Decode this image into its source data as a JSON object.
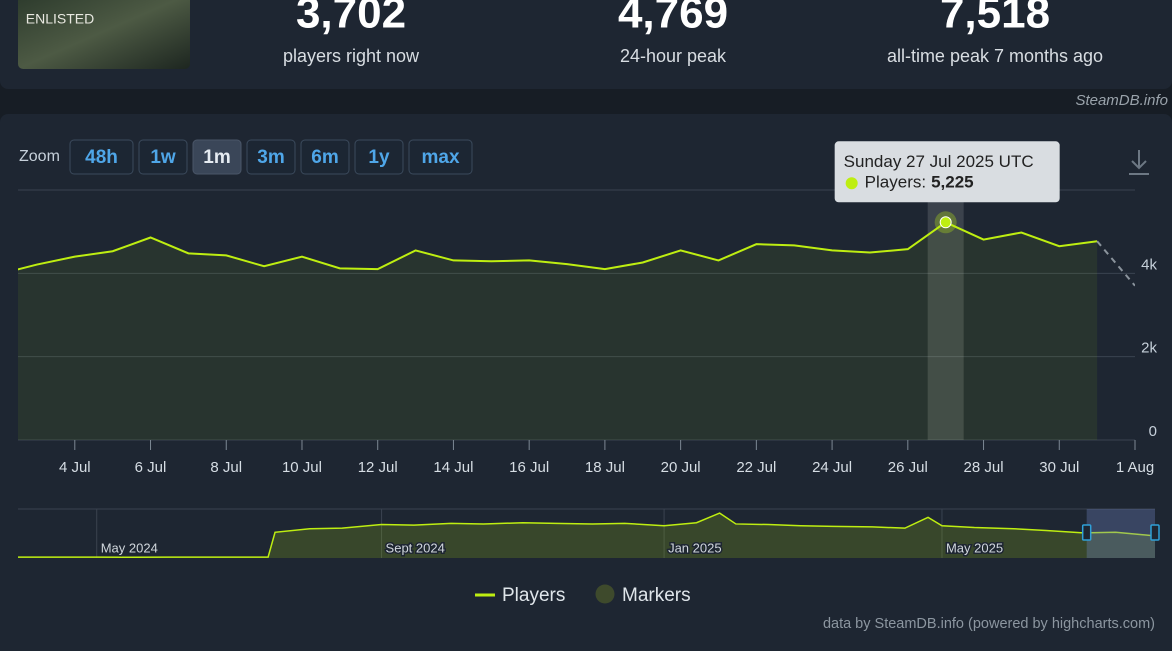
{
  "header": {
    "game_logo": "ENLISTED",
    "stats": [
      {
        "value": "3,702",
        "label": "players right now"
      },
      {
        "value": "4,769",
        "label": "24-hour peak"
      },
      {
        "value": "7,518",
        "label": "all-time peak 7 months ago"
      }
    ],
    "source": "SteamDB.info"
  },
  "zoom": {
    "label": "Zoom",
    "options": [
      "48h",
      "1w",
      "1m",
      "3m",
      "6m",
      "1y",
      "max"
    ],
    "selected": "1m"
  },
  "chart_data": {
    "type": "line",
    "x": [
      "2025-07-02",
      "2025-07-03",
      "2025-07-04",
      "2025-07-05",
      "2025-07-06",
      "2025-07-07",
      "2025-07-08",
      "2025-07-09",
      "2025-07-10",
      "2025-07-11",
      "2025-07-12",
      "2025-07-13",
      "2025-07-14",
      "2025-07-15",
      "2025-07-16",
      "2025-07-17",
      "2025-07-18",
      "2025-07-19",
      "2025-07-20",
      "2025-07-21",
      "2025-07-22",
      "2025-07-23",
      "2025-07-24",
      "2025-07-25",
      "2025-07-26",
      "2025-07-27",
      "2025-07-28",
      "2025-07-29",
      "2025-07-30",
      "2025-07-31",
      "2025-08-01"
    ],
    "series": [
      {
        "name": "Players",
        "color": "#beee11",
        "values": [
          3980,
          4210,
          4400,
          4530,
          4860,
          4480,
          4430,
          4170,
          4400,
          4120,
          4100,
          4550,
          4310,
          4290,
          4310,
          4220,
          4100,
          4260,
          4550,
          4310,
          4700,
          4670,
          4550,
          4500,
          4580,
          5225,
          4810,
          4980,
          4650,
          4770,
          3702
        ]
      }
    ],
    "dashed_last_segment": true,
    "markers": {
      "name": "Markers",
      "color": "#3e4a2c"
    },
    "xlim": [
      "2025-07-02T12:00",
      "2025-08-01"
    ],
    "xticks": [
      {
        "value": "2025-07-04",
        "label": "4 Jul"
      },
      {
        "value": "2025-07-06",
        "label": "6 Jul"
      },
      {
        "value": "2025-07-08",
        "label": "8 Jul"
      },
      {
        "value": "2025-07-10",
        "label": "10 Jul"
      },
      {
        "value": "2025-07-12",
        "label": "12 Jul"
      },
      {
        "value": "2025-07-14",
        "label": "14 Jul"
      },
      {
        "value": "2025-07-16",
        "label": "16 Jul"
      },
      {
        "value": "2025-07-18",
        "label": "18 Jul"
      },
      {
        "value": "2025-07-20",
        "label": "20 Jul"
      },
      {
        "value": "2025-07-22",
        "label": "22 Jul"
      },
      {
        "value": "2025-07-24",
        "label": "24 Jul"
      },
      {
        "value": "2025-07-26",
        "label": "26 Jul"
      },
      {
        "value": "2025-07-28",
        "label": "28 Jul"
      },
      {
        "value": "2025-07-30",
        "label": "30 Jul"
      },
      {
        "value": "2025-08-01",
        "label": "1 Aug"
      }
    ],
    "ylim": [
      0,
      6000
    ],
    "yticks": [
      0,
      {
        "value": 2000,
        "label": "2k"
      },
      {
        "value": 4000,
        "label": "4k"
      }
    ],
    "grid": true,
    "tooltip": {
      "title": "Sunday 27 Jul 2025 UTC",
      "label": "Players:",
      "x": "2025-07-27",
      "value": 5225,
      "value_label": "5,225"
    },
    "navigator": {
      "x": [
        "2024-03-28",
        "2024-04-15",
        "2024-05-01",
        "2024-05-15",
        "2024-06-01",
        "2024-06-15",
        "2024-07-01",
        "2024-07-14",
        "2024-07-17",
        "2024-08-01",
        "2024-08-15",
        "2024-09-01",
        "2024-09-15",
        "2024-10-01",
        "2024-10-15",
        "2024-11-01",
        "2024-11-15",
        "2024-12-01",
        "2024-12-15",
        "2025-01-01",
        "2025-01-15",
        "2025-01-25",
        "2025-02-01",
        "2025-02-15",
        "2025-03-01",
        "2025-03-15",
        "2025-04-01",
        "2025-04-15",
        "2025-04-25",
        "2025-05-01",
        "2025-05-15",
        "2025-06-01",
        "2025-06-15",
        "2025-07-01",
        "2025-07-15",
        "2025-08-01"
      ],
      "values": [
        150,
        150,
        150,
        120,
        150,
        150,
        150,
        150,
        4300,
        4900,
        5000,
        5600,
        5500,
        5800,
        5700,
        5900,
        5800,
        5700,
        5800,
        5400,
        5900,
        7518,
        5700,
        5600,
        5400,
        5300,
        5200,
        5000,
        6800,
        5400,
        5100,
        4900,
        4600,
        4200,
        4300,
        3702
      ],
      "xlim": [
        "2024-03-28",
        "2025-08-01"
      ],
      "ylim": [
        0,
        8200
      ],
      "xticks": [
        {
          "value": "2024-05-01",
          "label": "May 2024"
        },
        {
          "value": "2024-09-01",
          "label": "Sept 2024"
        },
        {
          "value": "2025-01-01",
          "label": "Jan 2025"
        },
        {
          "value": "2025-05-01",
          "label": "May 2025"
        }
      ]
    },
    "credits": "data by SteamDB.info (powered by highcharts.com)"
  }
}
